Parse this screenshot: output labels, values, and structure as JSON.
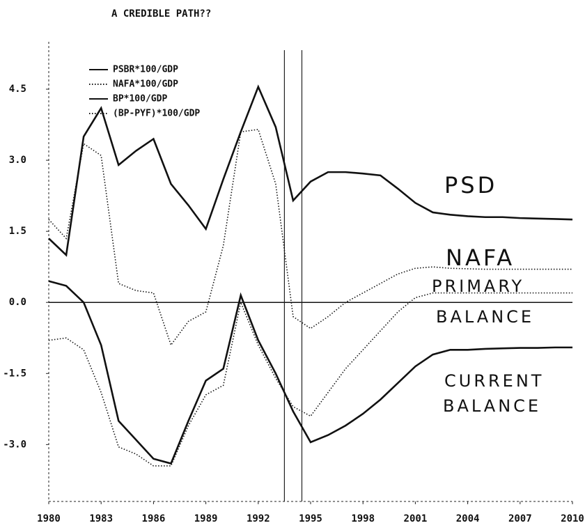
{
  "chart_data": {
    "type": "line",
    "title": "A CREDIBLE PATH??",
    "x": [
      1980,
      1981,
      1982,
      1983,
      1984,
      1985,
      1986,
      1987,
      1988,
      1989,
      1990,
      1991,
      1992,
      1993,
      1994,
      1995,
      1996,
      1997,
      1998,
      1999,
      2000,
      2001,
      2002,
      2003,
      2004,
      2005,
      2006,
      2007,
      2008,
      2009,
      2010
    ],
    "series": [
      {
        "name": "PSBR*100/GDP",
        "color": "#111111",
        "style": "solid",
        "values": [
          1.35,
          1.0,
          3.5,
          4.1,
          2.9,
          3.2,
          3.45,
          2.5,
          2.05,
          1.55,
          2.6,
          3.6,
          4.55,
          3.7,
          2.15,
          2.55,
          2.75,
          2.75,
          2.72,
          2.68,
          2.4,
          2.1,
          1.9,
          1.85,
          1.82,
          1.8,
          1.8,
          1.78,
          1.77,
          1.76,
          1.75
        ]
      },
      {
        "name": "NAFA*100/GDP",
        "color": "#111111",
        "style": "dotted",
        "values": [
          1.75,
          1.35,
          3.35,
          3.1,
          0.4,
          0.25,
          0.2,
          -0.9,
          -0.4,
          -0.2,
          1.2,
          3.6,
          3.65,
          2.5,
          -0.3,
          -0.55,
          -0.3,
          0.0,
          0.2,
          0.4,
          0.6,
          0.72,
          0.75,
          0.72,
          0.71,
          0.7,
          0.7,
          0.7,
          0.7,
          0.7,
          0.7
        ]
      },
      {
        "name": "BP*100/GDP",
        "color": "#111111",
        "style": "solid",
        "values": [
          0.45,
          0.35,
          0.0,
          -0.9,
          -2.5,
          -2.9,
          -3.3,
          -3.4,
          -2.5,
          -1.65,
          -1.4,
          0.15,
          -0.8,
          -1.5,
          -2.3,
          -2.95,
          -2.8,
          -2.6,
          -2.35,
          -2.05,
          -1.7,
          -1.35,
          -1.1,
          -1.0,
          -1.0,
          -0.98,
          -0.97,
          -0.96,
          -0.96,
          -0.95,
          -0.95
        ]
      },
      {
        "name": "(BP-PYF)*100/GDP",
        "color": "#111111",
        "style": "dotted",
        "values": [
          -0.8,
          -0.75,
          -1.0,
          -1.9,
          -3.05,
          -3.2,
          -3.45,
          -3.45,
          -2.6,
          -1.95,
          -1.75,
          0.0,
          -0.9,
          -1.6,
          -2.2,
          -2.4,
          -1.9,
          -1.4,
          -1.0,
          -0.6,
          -0.2,
          0.1,
          0.2,
          0.2,
          0.2,
          0.2,
          0.2,
          0.2,
          0.2,
          0.2,
          0.2
        ]
      }
    ],
    "xlim": [
      1980,
      2010
    ],
    "xticks": [
      1980,
      1983,
      1986,
      1989,
      1992,
      1995,
      1998,
      2001,
      2004,
      2007,
      2010
    ],
    "ylim": [
      -4.2,
      5.5
    ],
    "yticks": [
      {
        "value": -3,
        "label": "-3.0"
      },
      -1.5,
      {
        "value": 0,
        "label": "0.0"
      },
      1.5,
      {
        "value": 3,
        "label": "3.0"
      },
      4.5
    ],
    "zero_line": true,
    "vlines": [
      1993.5,
      1994.5
    ],
    "annotations": [
      "PSD",
      "NAFA",
      "PRIMARY",
      "BALANCE",
      "CURRENT",
      "BALANCE"
    ]
  }
}
